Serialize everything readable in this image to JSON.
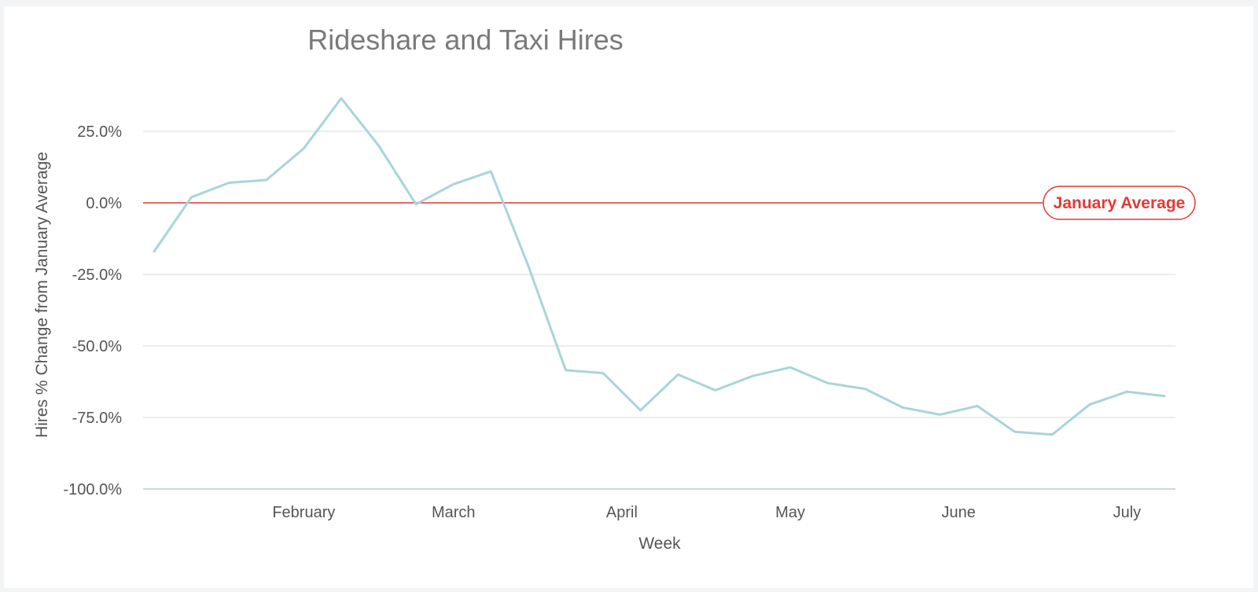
{
  "chart_data": {
    "type": "line",
    "title": "Rideshare and Taxi Hires",
    "xlabel": "Week",
    "ylabel": "Hires % Change from January Average",
    "ylim": [
      -100,
      25
    ],
    "y_ticks": [
      "25.0%",
      "0.0%",
      "-25.0%",
      "-50.0%",
      "-75.0%",
      "-100.0%"
    ],
    "y_tick_values": [
      25,
      0,
      -25,
      -50,
      -75,
      -100
    ],
    "x_tick_labels": [
      "February",
      "March",
      "April",
      "May",
      "June",
      "July"
    ],
    "x_tick_week_index": [
      4,
      8,
      12.5,
      17,
      21.5,
      26
    ],
    "grid": true,
    "series": [
      {
        "color": "#a8d5d8",
        "values": [
          -17,
          2,
          7,
          8,
          19,
          36.5,
          20,
          -0.5,
          6.5,
          11,
          -22,
          -58.5,
          -59.5,
          -72.5,
          -60,
          -65.5,
          -60.5,
          -57.5,
          -63,
          -65,
          -71.5,
          -74,
          -71,
          -80,
          -81,
          -70.5,
          -66,
          -67.5
        ]
      }
    ],
    "reference_line": {
      "value": 0,
      "label": "January Average",
      "color": "#e53935"
    }
  }
}
